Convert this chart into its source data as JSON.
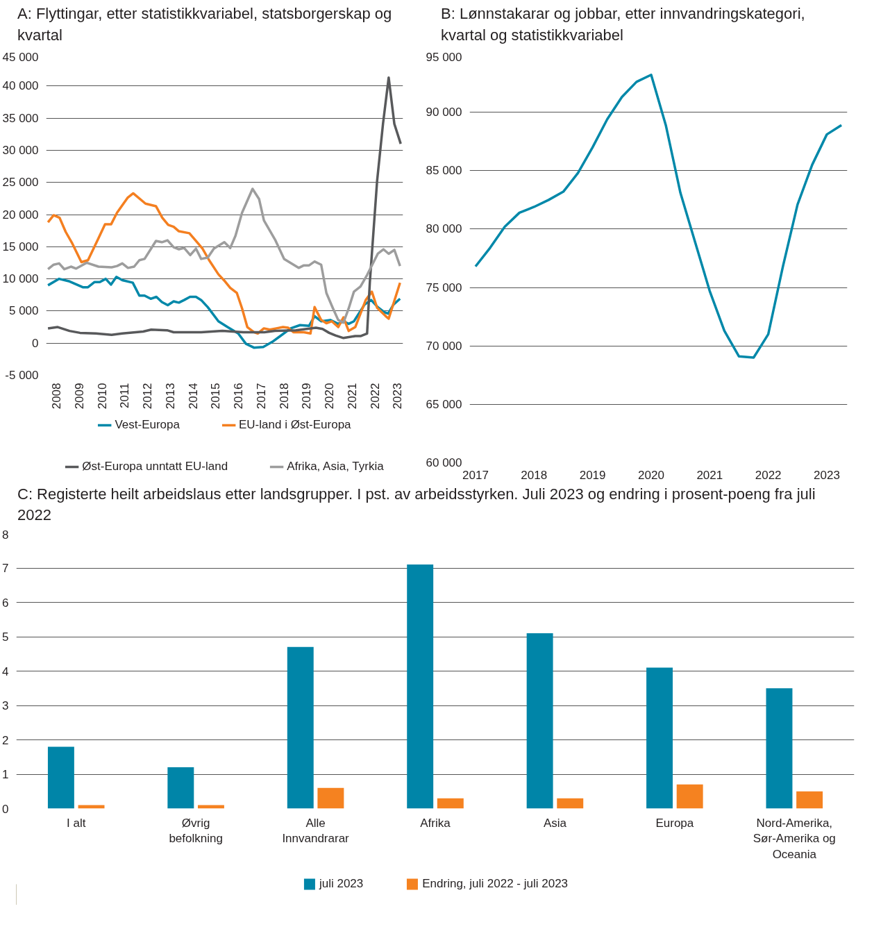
{
  "chart_data": [
    {
      "type": "line",
      "title": "A:  Flyttingar, etter statistikkvariabel, statsborgerskap og kvartal",
      "xlim": [
        2007.55,
        2023.25
      ],
      "xticks": [
        2008,
        2009,
        2010,
        2011,
        2012,
        2013,
        2014,
        2015,
        2016,
        2017,
        2018,
        2019,
        2020,
        2021,
        2022,
        2023
      ],
      "ylim": [
        -5000,
        45000
      ],
      "yticks": [
        {
          "value": -5000,
          "label": "-5 000"
        },
        {
          "value": 0,
          "label": "0"
        },
        {
          "value": 5000,
          "label": "5 000"
        },
        {
          "value": 10000,
          "label": "10 000"
        },
        {
          "value": 15000,
          "label": "15 000"
        },
        {
          "value": 20000,
          "label": "20 000"
        },
        {
          "value": 25000,
          "label": "25 000"
        },
        {
          "value": 30000,
          "label": "30 000"
        },
        {
          "value": 35000,
          "label": "35 000"
        },
        {
          "value": 40000,
          "label": "40 000"
        },
        {
          "value": 45000,
          "label": "45 000"
        }
      ],
      "grid": "y",
      "legend": "bottom",
      "series": [
        {
          "name": "Vest-Europa",
          "color": "#0088a9",
          "x": [
            2007.63,
            2008.12,
            2008.58,
            2009.16,
            2009.39,
            2009.68,
            2009.91,
            2010.17,
            2010.4,
            2010.64,
            2010.9,
            2011.36,
            2011.65,
            2011.88,
            2012.15,
            2012.4,
            2012.64,
            2012.9,
            2013.16,
            2013.39,
            2013.62,
            2013.88,
            2014.14,
            2014.37,
            2014.66,
            2015.13,
            2015.53,
            2016.0,
            2016.34,
            2016.69,
            2017.1,
            2017.5,
            2017.85,
            2018.31,
            2018.72,
            2019.12,
            2019.36,
            2019.65,
            2020.05,
            2020.4,
            2020.63,
            2020.86,
            2021.09,
            2021.56,
            2021.85,
            2022.14,
            2022.43,
            2022.6,
            2022.83,
            2023.12
          ],
          "values": [
            9000,
            10000,
            9600,
            8700,
            8700,
            9500,
            9500,
            10000,
            9100,
            10300,
            9800,
            9400,
            7400,
            7400,
            6900,
            7200,
            6400,
            5900,
            6500,
            6300,
            6700,
            7200,
            7200,
            6700,
            5600,
            3400,
            2500,
            1500,
            -100,
            -700,
            -600,
            200,
            1100,
            2300,
            2800,
            2700,
            4200,
            3400,
            3600,
            3000,
            3400,
            3000,
            3400,
            6000,
            6700,
            5600,
            4800,
            4600,
            6000,
            6900
          ]
        },
        {
          "name": "EU-land i Øst-Europa",
          "color": "#f47f20",
          "x": [
            2007.63,
            2007.88,
            2008.14,
            2008.41,
            2008.7,
            2009.1,
            2009.39,
            2009.85,
            2010.14,
            2010.41,
            2010.67,
            2011.13,
            2011.38,
            2011.92,
            2012.38,
            2012.66,
            2012.92,
            2013.16,
            2013.39,
            2013.85,
            2014.14,
            2014.43,
            2014.72,
            2015.13,
            2015.42,
            2015.65,
            2015.94,
            2016.17,
            2016.4,
            2016.69,
            2016.86,
            2017.13,
            2017.39,
            2017.68,
            2017.97,
            2018.2,
            2018.43,
            2018.89,
            2019.18,
            2019.36,
            2019.65,
            2019.88,
            2020.12,
            2020.4,
            2020.63,
            2020.86,
            2021.15,
            2021.61,
            2021.88,
            2022.11,
            2022.49,
            2022.62,
            2023.12
          ],
          "values": [
            18800,
            19900,
            19500,
            17300,
            15500,
            12600,
            12900,
            16300,
            18500,
            18500,
            20300,
            22600,
            23300,
            21700,
            21300,
            19500,
            18400,
            18100,
            17400,
            17100,
            15900,
            14700,
            12900,
            10700,
            9600,
            8600,
            7800,
            5400,
            2500,
            1700,
            1500,
            2300,
            2100,
            2300,
            2500,
            2400,
            1700,
            1700,
            1500,
            5600,
            3600,
            3100,
            3400,
            2500,
            4000,
            1900,
            2500,
            6700,
            8000,
            5500,
            4200,
            3800,
            9400
          ]
        },
        {
          "name": "Øst-Europa unntatt EU-land",
          "color": "#58595b",
          "x": [
            2007.63,
            2008.06,
            2008.58,
            2009.04,
            2009.74,
            2010.43,
            2010.9,
            2011.82,
            2012.17,
            2012.87,
            2013.16,
            2013.91,
            2014.37,
            2015.3,
            2016.23,
            2017.15,
            2017.62,
            2018.54,
            2019.01,
            2019.42,
            2019.71,
            2020.0,
            2020.28,
            2020.63,
            2021.15,
            2021.38,
            2021.67,
            2021.79,
            2022.11,
            2022.37,
            2022.62,
            2022.87,
            2023.15
          ],
          "values": [
            2300,
            2500,
            1900,
            1600,
            1500,
            1300,
            1500,
            1800,
            2100,
            2000,
            1700,
            1700,
            1700,
            1900,
            1700,
            1700,
            1900,
            2000,
            2200,
            2400,
            2200,
            1600,
            1200,
            800,
            1100,
            1100,
            1500,
            9400,
            25200,
            34100,
            41300,
            34100,
            31000
          ]
        },
        {
          "name": "Afrika, Asia, Tyrkia",
          "color": "#9d9d9d",
          "x": [
            2007.63,
            2007.88,
            2008.12,
            2008.35,
            2008.64,
            2008.87,
            2009.33,
            2009.85,
            2010.43,
            2010.67,
            2010.9,
            2011.15,
            2011.42,
            2011.65,
            2011.88,
            2012.38,
            2012.64,
            2012.89,
            2013.16,
            2013.39,
            2013.62,
            2013.89,
            2014.14,
            2014.37,
            2014.66,
            2014.93,
            2015.39,
            2015.65,
            2015.88,
            2016.17,
            2016.63,
            2016.92,
            2017.13,
            2017.62,
            2018.02,
            2018.66,
            2018.89,
            2019.12,
            2019.36,
            2019.65,
            2019.88,
            2020.17,
            2020.4,
            2020.63,
            2020.86,
            2021.09,
            2021.38,
            2021.67,
            2022.14,
            2022.39,
            2022.62,
            2022.87,
            2023.12
          ],
          "values": [
            11500,
            12200,
            12400,
            11500,
            11900,
            11600,
            12500,
            11900,
            11800,
            12000,
            12400,
            11700,
            11900,
            12900,
            13100,
            15900,
            15700,
            16000,
            14900,
            14600,
            14800,
            13700,
            14700,
            13100,
            13300,
            14700,
            15700,
            14800,
            16700,
            20300,
            24000,
            22400,
            19100,
            16100,
            13100,
            11700,
            12100,
            12100,
            12700,
            12200,
            7800,
            5400,
            3600,
            3200,
            5400,
            8000,
            8800,
            10600,
            13900,
            14600,
            13900,
            14500,
            12000
          ]
        }
      ]
    },
    {
      "type": "line",
      "title": "B:  Lønnstakarar og jobbar, etter innvandringskategori, kvartal og statistikkvariabel",
      "xlim": [
        2016.9,
        2023.35
      ],
      "xticks": [
        2017,
        2018,
        2019,
        2020,
        2021,
        2022,
        2023
      ],
      "ylim": [
        60000,
        95000
      ],
      "yticks": [
        {
          "value": 60000,
          "label": "60 000"
        },
        {
          "value": 65000,
          "label": "65 000"
        },
        {
          "value": 70000,
          "label": "70 000"
        },
        {
          "value": 75000,
          "label": "75 000"
        },
        {
          "value": 80000,
          "label": "80 000"
        },
        {
          "value": 85000,
          "label": "85 000"
        },
        {
          "value": 90000,
          "label": "90 000"
        },
        {
          "value": 95000,
          "label": "95 000"
        }
      ],
      "grid": "y",
      "series": [
        {
          "color": "#0088a9",
          "x": [
            2017,
            2017.25,
            2017.5,
            2017.75,
            2018,
            2018.25,
            2018.5,
            2018.75,
            2019,
            2019.25,
            2019.5,
            2019.75,
            2020,
            2020.25,
            2020.5,
            2020.75,
            2021,
            2021.25,
            2021.5,
            2021.75,
            2022,
            2022.25,
            2022.5,
            2022.75,
            2023,
            2023.25
          ],
          "values": [
            76800,
            78400,
            80200,
            81400,
            81900,
            82500,
            83200,
            84800,
            87000,
            89400,
            91300,
            92600,
            93200,
            88900,
            83100,
            78900,
            74700,
            71300,
            69100,
            69000,
            71000,
            76800,
            82100,
            85500,
            88100,
            88900
          ]
        }
      ]
    },
    {
      "type": "bar",
      "title": "C:  Registerte heilt arbeidslaus etter landsgrupper. I pst. av arbeidsstyrken. Juli 2023 og endring i prosent-poeng fra juli 2022",
      "categories": [
        "I alt",
        "Øvrig befolkning",
        "Alle Innvandrarar",
        "Afrika",
        "Asia",
        "Europa",
        "Nord-Amerika, Sør-Amerika og Oceania"
      ],
      "ylim": [
        0,
        8
      ],
      "yticks": [
        0,
        1,
        2,
        3,
        4,
        5,
        6,
        7,
        8
      ],
      "grid": "y",
      "legend": "bottom",
      "series": [
        {
          "name": "juli 2023",
          "color": "#0085a8",
          "values": [
            1.8,
            1.2,
            4.7,
            7.1,
            5.1,
            4.1,
            3.5
          ]
        },
        {
          "name": "Endring, juli 2022 - juli 2023",
          "color": "#f58220",
          "values": [
            0.1,
            0.1,
            0.6,
            0.3,
            0.3,
            0.7,
            0.5
          ]
        }
      ]
    }
  ]
}
